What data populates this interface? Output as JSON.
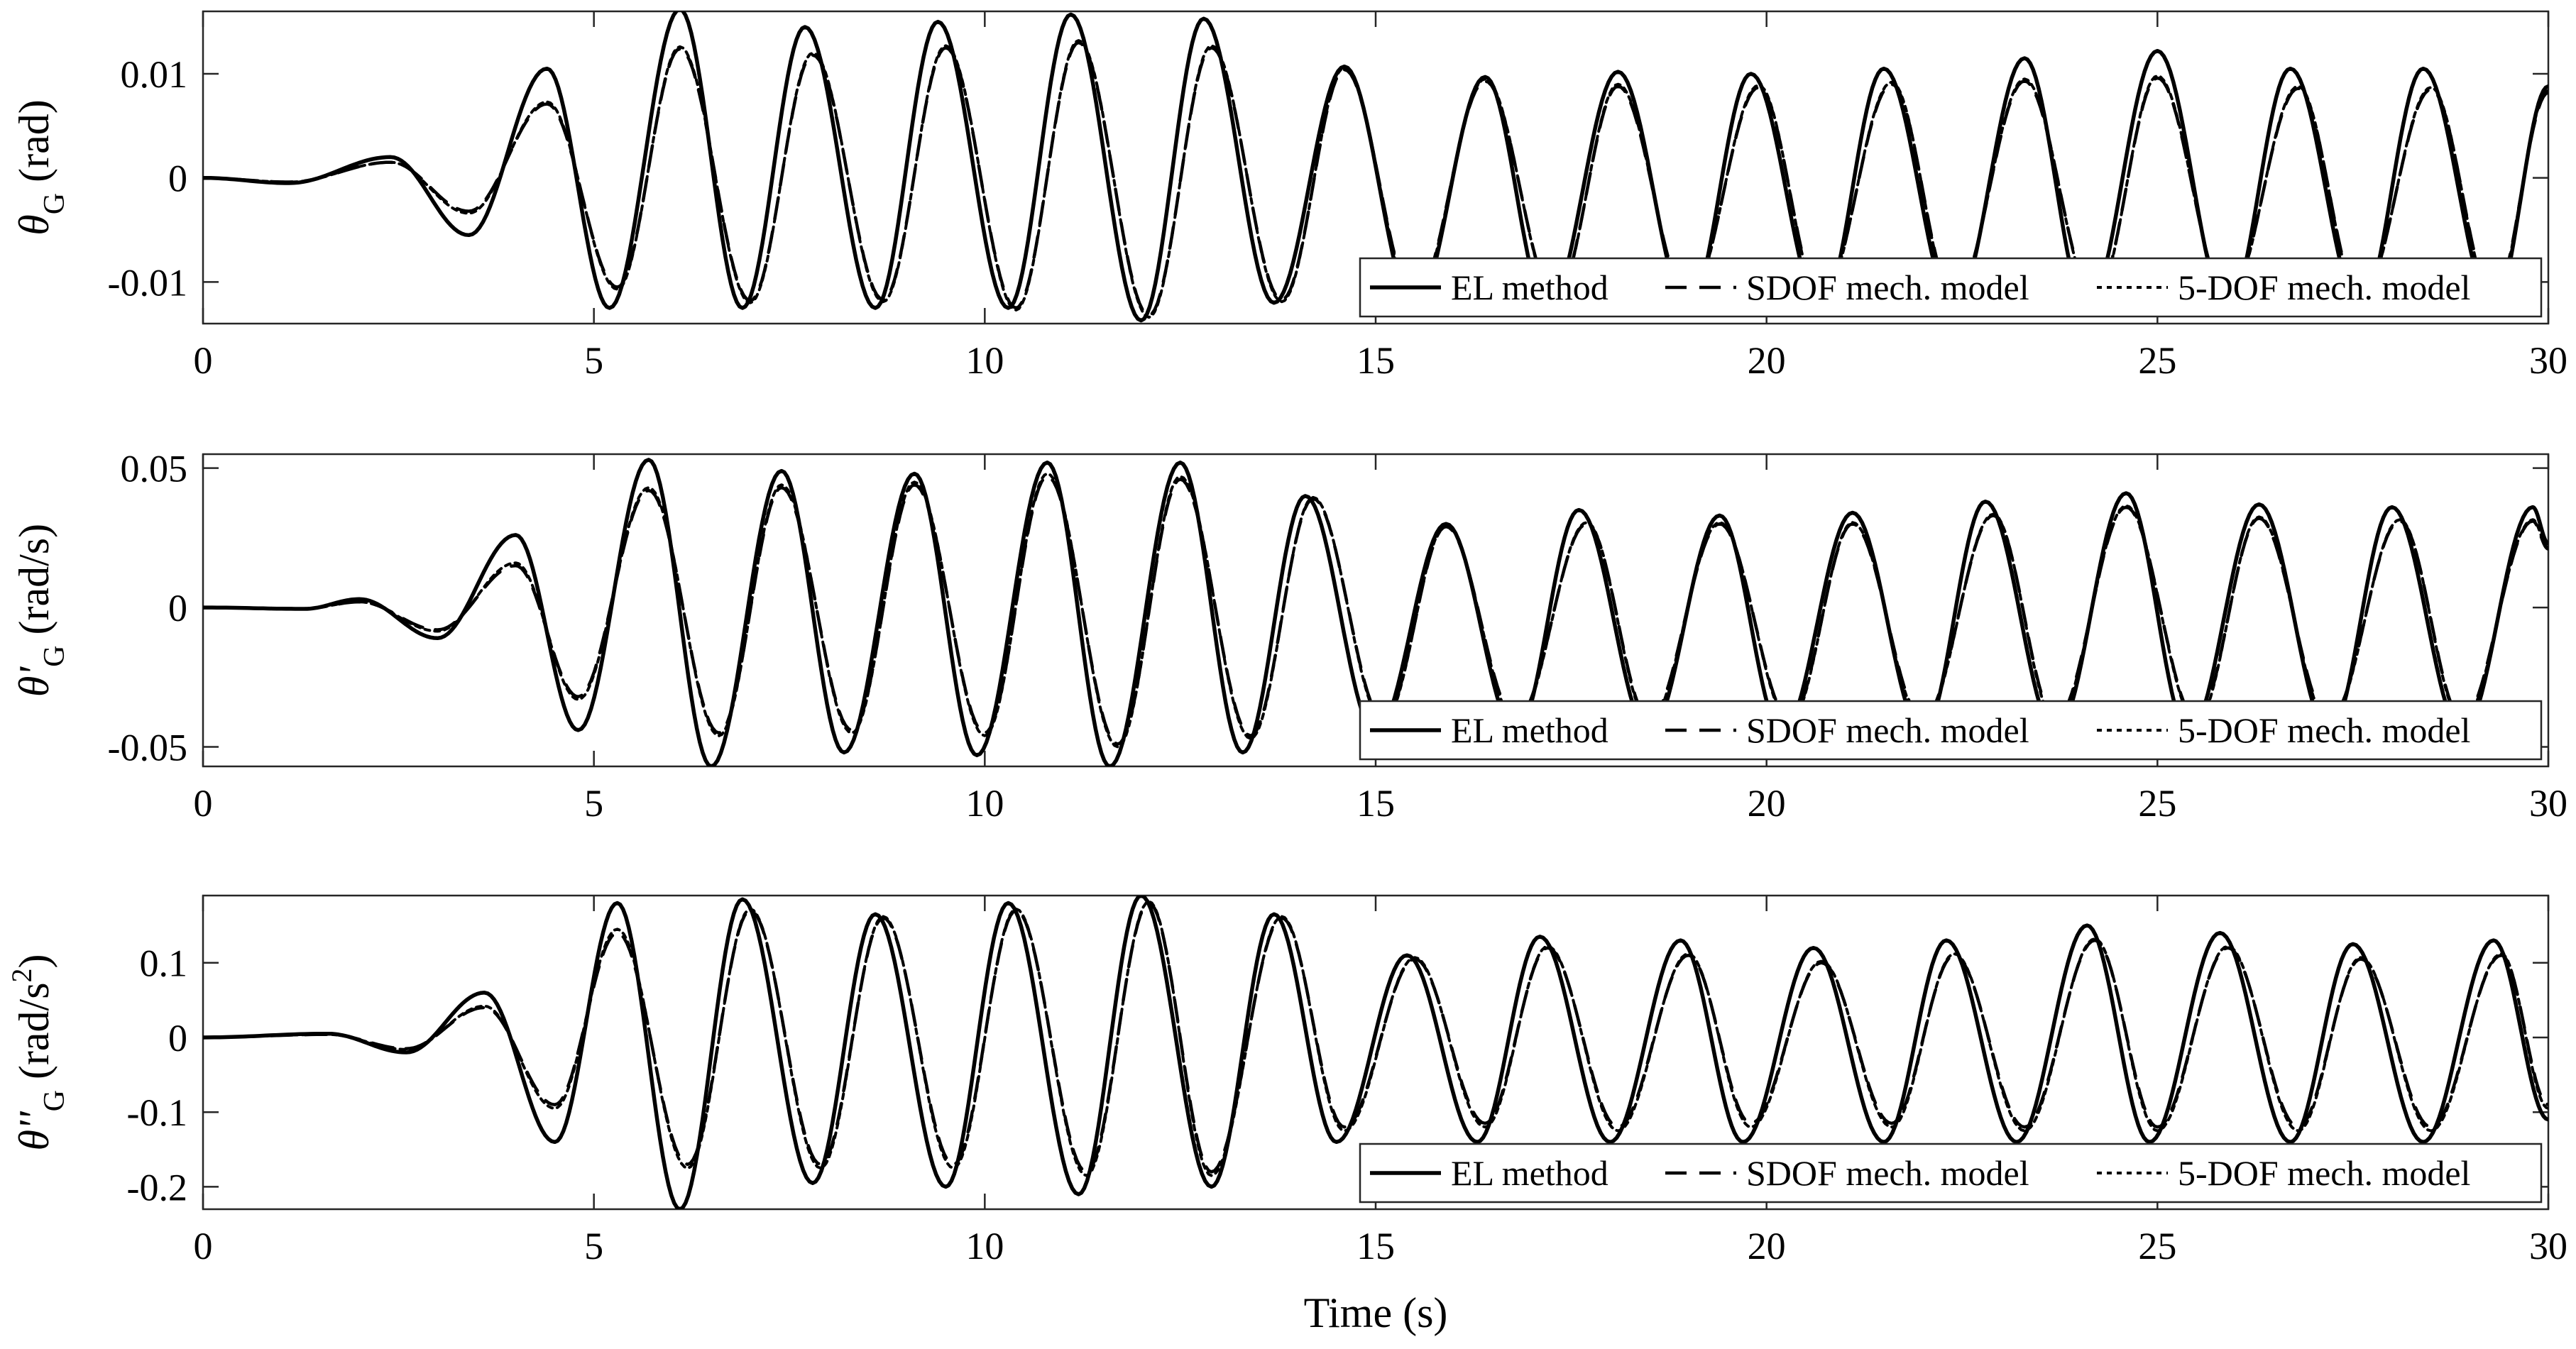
{
  "chart_data": [
    {
      "type": "line",
      "id": "panel-theta",
      "ylabel": {
        "symbol": "θ",
        "prime": "",
        "sub": "G",
        "unit_open": " (rad",
        "sup": "",
        "unit_close": ")"
      },
      "xlabel": "",
      "xlim": [
        0,
        30
      ],
      "ylim": [
        -0.014,
        0.016
      ],
      "xticks": [
        0,
        5,
        10,
        15,
        20,
        25,
        30
      ],
      "xtick_labels": [
        "0",
        "5",
        "10",
        "15",
        "20",
        "25",
        "30"
      ],
      "yticks": [
        -0.01,
        0,
        0.01
      ],
      "ytick_labels": [
        "-0.01",
        "0",
        "0.01"
      ],
      "legend": {
        "placement": "bottom-right",
        "orientation": "horizontal",
        "entries": [
          "EL method",
          "SDOF mech. model",
          "5-DOF mech. model"
        ]
      },
      "series": [
        {
          "name": "EL method",
          "style": "solid",
          "x": [
            0,
            1.1,
            2.4,
            3.4,
            4.4,
            5.2,
            6.1,
            6.9,
            7.7,
            8.6,
            9.4,
            10.3,
            11.1,
            12,
            12.8,
            13.7,
            14.6,
            15.5,
            16.4,
            17.2,
            18.1,
            19,
            19.8,
            20.7,
            21.5,
            22.4,
            23.3,
            24.1,
            25,
            25.9,
            26.7,
            27.6,
            28.4,
            29.3,
            30
          ],
          "y": [
            0,
            -0.0005,
            0.002,
            -0.0055,
            0.0105,
            -0.0125,
            0.0162,
            -0.0125,
            0.0145,
            -0.0125,
            0.015,
            -0.0125,
            0.0157,
            -0.0137,
            0.0153,
            -0.012,
            0.0107,
            -0.0125,
            0.0097,
            -0.0125,
            0.0102,
            -0.0125,
            0.01,
            -0.0125,
            0.0105,
            -0.0125,
            0.0115,
            -0.0125,
            0.0122,
            -0.0125,
            0.0105,
            -0.0125,
            0.0105,
            -0.0125,
            0.0088
          ]
        },
        {
          "name": "SDOF mech. model",
          "style": "dashed",
          "x": [
            0,
            1.1,
            2.4,
            3.4,
            4.4,
            5.3,
            6.1,
            7,
            7.8,
            8.7,
            9.5,
            10.4,
            11.2,
            12.1,
            12.9,
            13.8,
            14.6,
            15.5,
            16.4,
            17.3,
            18.1,
            19,
            19.9,
            20.7,
            21.6,
            22.4,
            23.3,
            24.2,
            25,
            25.9,
            26.8,
            27.6,
            28.5,
            29.3,
            30
          ],
          "y": [
            0,
            -0.0004,
            0.0015,
            -0.0032,
            0.0071,
            -0.0105,
            0.0124,
            -0.0118,
            0.0118,
            -0.0117,
            0.0125,
            -0.0125,
            0.013,
            -0.0132,
            0.0125,
            -0.0117,
            0.0104,
            -0.0115,
            0.0093,
            -0.0115,
            0.0088,
            -0.0115,
            0.0087,
            -0.0115,
            0.009,
            -0.0115,
            0.0093,
            -0.0115,
            0.0096,
            -0.0115,
            0.0086,
            -0.0115,
            0.0085,
            -0.0115,
            0.0082
          ]
        },
        {
          "name": "5-DOF mech. model",
          "style": "dotted",
          "x": [
            0,
            1.1,
            2.4,
            3.4,
            4.4,
            5.3,
            6.1,
            7,
            7.8,
            8.7,
            9.5,
            10.4,
            11.2,
            12.1,
            12.9,
            13.8,
            14.6,
            15.5,
            16.4,
            17.3,
            18.1,
            19,
            19.9,
            20.7,
            21.6,
            22.4,
            23.3,
            24.2,
            25,
            25.9,
            26.8,
            27.6,
            28.5,
            29.3,
            30
          ],
          "y": [
            0,
            -0.0004,
            0.0015,
            -0.0034,
            0.0073,
            -0.0107,
            0.0126,
            -0.012,
            0.012,
            -0.0119,
            0.0127,
            -0.0127,
            0.0132,
            -0.0134,
            0.0127,
            -0.0119,
            0.0106,
            -0.0117,
            0.0095,
            -0.0117,
            0.009,
            -0.0117,
            0.0089,
            -0.0117,
            0.0092,
            -0.0117,
            0.0095,
            -0.0117,
            0.0098,
            -0.0117,
            0.0088,
            -0.0117,
            0.0087,
            -0.0117,
            0.0084
          ]
        }
      ]
    },
    {
      "type": "line",
      "id": "panel-theta-dot",
      "ylabel": {
        "symbol": "θ",
        "prime": "'",
        "sub": "G",
        "unit_open": " (rad/s",
        "sup": "",
        "unit_close": ")"
      },
      "xlabel": "",
      "xlim": [
        0,
        30
      ],
      "ylim": [
        -0.057,
        0.055
      ],
      "xticks": [
        0,
        5,
        10,
        15,
        20,
        25,
        30
      ],
      "xtick_labels": [
        "0",
        "5",
        "10",
        "15",
        "20",
        "25",
        "30"
      ],
      "yticks": [
        -0.05,
        0,
        0.05
      ],
      "ytick_labels": [
        "-0.05",
        "0",
        "0.05"
      ],
      "legend": {
        "placement": "bottom-right",
        "orientation": "horizontal",
        "entries": [
          "EL method",
          "SDOF mech. model",
          "5-DOF mech. model"
        ]
      },
      "series": [
        {
          "name": "EL method",
          "style": "solid",
          "x": [
            0,
            1.3,
            2,
            3,
            4,
            4.8,
            5.7,
            6.5,
            7.4,
            8.2,
            9.1,
            9.9,
            10.8,
            11.6,
            12.5,
            13.3,
            14.1,
            15,
            15.9,
            16.8,
            17.6,
            18.5,
            19.4,
            20.2,
            21.1,
            22,
            22.8,
            23.7,
            24.6,
            25.4,
            26.3,
            27.2,
            28,
            28.9,
            29.8,
            30
          ],
          "y": [
            0,
            -0.0005,
            0.003,
            -0.011,
            0.026,
            -0.044,
            0.053,
            -0.057,
            0.049,
            -0.052,
            0.048,
            -0.053,
            0.052,
            -0.057,
            0.052,
            -0.052,
            0.04,
            -0.045,
            0.03,
            -0.045,
            0.035,
            -0.045,
            0.033,
            -0.045,
            0.034,
            -0.045,
            0.038,
            -0.045,
            0.041,
            -0.045,
            0.037,
            -0.045,
            0.036,
            -0.045,
            0.036,
            0.023
          ]
        },
        {
          "name": "SDOF mech. model",
          "style": "dashed",
          "x": [
            0,
            1.3,
            2,
            3,
            4,
            4.8,
            5.7,
            6.6,
            7.4,
            8.3,
            9.1,
            10,
            10.8,
            11.7,
            12.5,
            13.4,
            14.2,
            15.1,
            15.9,
            16.8,
            17.7,
            18.5,
            19.4,
            20.3,
            21.1,
            22,
            22.9,
            23.7,
            24.6,
            25.5,
            26.3,
            27.2,
            28.1,
            28.9,
            29.8,
            30
          ],
          "y": [
            0,
            -0.0004,
            0.002,
            -0.008,
            0.015,
            -0.032,
            0.042,
            -0.045,
            0.043,
            -0.044,
            0.044,
            -0.045,
            0.047,
            -0.049,
            0.046,
            -0.046,
            0.039,
            -0.04,
            0.029,
            -0.04,
            0.03,
            -0.04,
            0.03,
            -0.04,
            0.03,
            -0.04,
            0.033,
            -0.04,
            0.036,
            -0.04,
            0.032,
            -0.04,
            0.031,
            -0.04,
            0.031,
            0.021
          ]
        },
        {
          "name": "5-DOF mech. model",
          "style": "dotted",
          "x": [
            0,
            1.3,
            2,
            3,
            4,
            4.8,
            5.7,
            6.6,
            7.4,
            8.3,
            9.1,
            10,
            10.8,
            11.7,
            12.5,
            13.4,
            14.2,
            15.1,
            15.9,
            16.8,
            17.7,
            18.5,
            19.4,
            20.3,
            21.1,
            22,
            22.9,
            23.7,
            24.6,
            25.5,
            26.3,
            27.2,
            28.1,
            28.9,
            29.8,
            30
          ],
          "y": [
            0,
            -0.0004,
            0.002,
            -0.0085,
            0.016,
            -0.033,
            0.043,
            -0.046,
            0.044,
            -0.045,
            0.045,
            -0.046,
            0.048,
            -0.05,
            0.047,
            -0.047,
            0.0395,
            -0.041,
            0.0295,
            -0.041,
            0.0305,
            -0.041,
            0.0305,
            -0.041,
            0.0305,
            -0.041,
            0.0335,
            -0.041,
            0.0365,
            -0.041,
            0.0325,
            -0.041,
            0.0315,
            -0.041,
            0.0315,
            0.0215
          ]
        }
      ]
    },
    {
      "type": "line",
      "id": "panel-theta-ddot",
      "ylabel": {
        "symbol": "θ",
        "prime": "''",
        "sub": "G",
        "unit_open": " (rad/s",
        "sup": "2",
        "unit_close": ")"
      },
      "xlabel": "Time (s)",
      "xlim": [
        0,
        30
      ],
      "ylim": [
        -0.23,
        0.19
      ],
      "xticks": [
        0,
        5,
        10,
        15,
        20,
        25,
        30
      ],
      "xtick_labels": [
        "0",
        "5",
        "10",
        "15",
        "20",
        "25",
        "30"
      ],
      "yticks": [
        -0.2,
        -0.1,
        0,
        0.1
      ],
      "ytick_labels": [
        "-0.2",
        "-0.1",
        "0",
        "0.1"
      ],
      "legend": {
        "placement": "bottom-right",
        "orientation": "horizontal",
        "entries": [
          "EL method",
          "SDOF mech. model",
          "5-DOF mech. model"
        ]
      },
      "series": [
        {
          "name": "EL method",
          "style": "solid",
          "x": [
            0,
            1.6,
            2.6,
            3.6,
            4.5,
            5.3,
            6.1,
            6.9,
            7.8,
            8.6,
            9.5,
            10.3,
            11.2,
            12,
            12.9,
            13.7,
            14.5,
            15.4,
            16.3,
            17.1,
            18,
            18.9,
            19.7,
            20.6,
            21.5,
            22.3,
            23.2,
            24.1,
            24.9,
            25.8,
            26.7,
            27.5,
            28.4,
            29.3,
            30
          ],
          "y": [
            0,
            0.005,
            -0.02,
            0.06,
            -0.14,
            0.18,
            -0.23,
            0.185,
            -0.195,
            0.165,
            -0.2,
            0.18,
            -0.21,
            0.19,
            -0.2,
            0.165,
            -0.14,
            0.11,
            -0.14,
            0.135,
            -0.14,
            0.13,
            -0.14,
            0.12,
            -0.14,
            0.13,
            -0.14,
            0.15,
            -0.14,
            0.14,
            -0.14,
            0.125,
            -0.14,
            0.13,
            -0.11
          ]
        },
        {
          "name": "SDOF mech. model",
          "style": "dashed",
          "x": [
            0,
            1.6,
            2.6,
            3.6,
            4.5,
            5.3,
            6.2,
            7,
            7.9,
            8.7,
            9.6,
            10.4,
            11.3,
            12.1,
            12.9,
            13.8,
            14.6,
            15.5,
            16.4,
            17.2,
            18.1,
            19,
            19.8,
            20.7,
            21.6,
            22.4,
            23.3,
            24.2,
            25,
            25.9,
            26.8,
            27.6,
            28.5,
            29.4,
            30
          ],
          "y": [
            0,
            0.004,
            -0.015,
            0.04,
            -0.09,
            0.14,
            -0.17,
            0.17,
            -0.17,
            0.16,
            -0.17,
            0.17,
            -0.18,
            0.18,
            -0.18,
            0.16,
            -0.12,
            0.105,
            -0.115,
            0.12,
            -0.12,
            0.11,
            -0.115,
            0.1,
            -0.115,
            0.11,
            -0.12,
            0.13,
            -0.12,
            0.12,
            -0.12,
            0.105,
            -0.12,
            0.11,
            -0.09
          ]
        },
        {
          "name": "5-DOF mech. model",
          "style": "dotted",
          "x": [
            0,
            1.6,
            2.6,
            3.6,
            4.5,
            5.3,
            6.2,
            7,
            7.9,
            8.7,
            9.6,
            10.4,
            11.3,
            12.1,
            12.9,
            13.8,
            14.6,
            15.5,
            16.4,
            17.2,
            18.1,
            19,
            19.8,
            20.7,
            21.6,
            22.4,
            23.3,
            24.2,
            25,
            25.9,
            26.8,
            27.6,
            28.5,
            29.4,
            30
          ],
          "y": [
            0,
            0.004,
            -0.016,
            0.042,
            -0.095,
            0.145,
            -0.175,
            0.172,
            -0.175,
            0.162,
            -0.175,
            0.172,
            -0.185,
            0.182,
            -0.185,
            0.162,
            -0.125,
            0.107,
            -0.12,
            0.122,
            -0.125,
            0.112,
            -0.12,
            0.102,
            -0.12,
            0.112,
            -0.125,
            0.132,
            -0.125,
            0.122,
            -0.125,
            0.107,
            -0.125,
            0.112,
            -0.095
          ]
        }
      ]
    }
  ]
}
